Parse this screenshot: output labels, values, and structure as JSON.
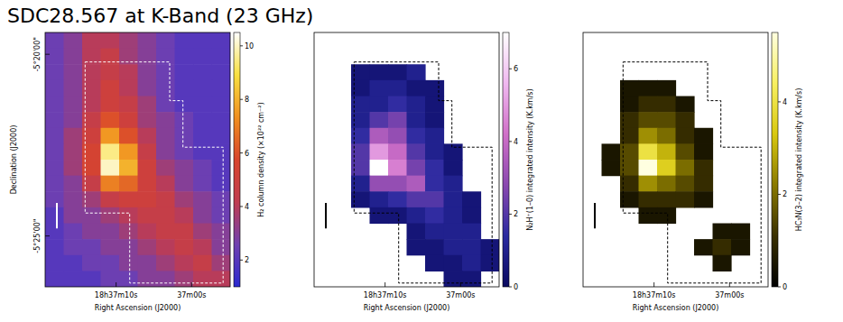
{
  "chart_data": [
    {
      "type": "heatmap",
      "title": "SDC28.567 at K-Band (23 GHz)",
      "x_label": "Right Ascension (J2000)",
      "y_label": "Declination (J2000)",
      "xlim": [
        19.4,
        -5.1
      ],
      "ylim": [
        -326.4,
        -319.4
      ],
      "xticks": [
        {
          "value": 10,
          "label": "18h37m10s"
        },
        {
          "value": 0,
          "label": "37m00s"
        }
      ],
      "yticks": [
        {
          "value": -320,
          "label": "-5°20'00\""
        },
        {
          "value": -325,
          "label": "-5°25'00\""
        }
      ],
      "x": [
        18.175,
        15.725,
        13.275,
        10.825,
        8.375,
        5.925,
        3.475,
        1.025,
        -1.425,
        -3.875
      ],
      "y": [
        -319.619,
        -320.056,
        -320.494,
        -320.931,
        -321.369,
        -321.806,
        -322.244,
        -322.681,
        -323.119,
        -323.556,
        -323.994,
        -324.431,
        -324.869,
        -325.306,
        -325.744,
        -326.181
      ],
      "cells": [
        [
          2.5,
          3,
          4,
          4,
          3.5,
          3,
          2.5,
          2,
          2,
          2
        ],
        [
          2.5,
          3,
          4,
          4.5,
          3.5,
          3,
          2.5,
          2,
          2,
          2
        ],
        [
          2.5,
          3,
          4,
          4.5,
          4,
          3,
          2.5,
          2,
          2,
          2
        ],
        [
          2.5,
          3,
          4,
          5,
          4,
          3,
          2.5,
          2,
          2,
          2
        ],
        [
          2.5,
          3,
          4,
          5,
          4.5,
          3.5,
          2.5,
          2,
          2,
          2
        ],
        [
          2.5,
          3,
          4.5,
          6,
          5,
          3.5,
          3,
          2.5,
          2,
          2
        ],
        [
          2.5,
          3.5,
          5,
          7.5,
          6,
          4,
          3,
          2.5,
          2,
          2
        ],
        [
          2.5,
          3.5,
          5.5,
          9.5,
          7.5,
          4.5,
          3,
          2.5,
          2,
          2
        ],
        [
          2.5,
          3.5,
          5.5,
          10,
          8,
          5,
          3.5,
          3,
          2.5,
          2
        ],
        [
          2.5,
          3,
          4.5,
          7,
          6.5,
          5,
          4,
          3,
          2.5,
          2
        ],
        [
          2.5,
          3,
          3.5,
          4.5,
          5,
          5,
          4.5,
          3.5,
          3,
          2.5
        ],
        [
          2,
          3,
          3,
          3.5,
          4,
          4.5,
          4.5,
          4,
          3,
          2.5
        ],
        [
          2,
          2.5,
          3,
          3,
          3.5,
          4,
          4.5,
          4.5,
          3.5,
          3
        ],
        [
          2,
          2.5,
          2.5,
          3,
          3,
          3.5,
          4,
          4.5,
          4,
          3
        ],
        [
          2,
          2,
          2.5,
          2.5,
          3,
          3,
          3.5,
          4,
          4.5,
          3.5
        ],
        [
          2,
          2,
          2,
          2.5,
          2.5,
          3,
          3,
          3.5,
          4,
          4
        ]
      ],
      "colors": [
        "#2a2ad0",
        "#7040b0",
        "#c03c50",
        "#d8442c",
        "#f09020",
        "#f8e040",
        "#ffffff"
      ],
      "colorbar": {
        "label": "H₂ column density (×10²² cm⁻²)",
        "range": [
          1,
          10.5
        ],
        "ticks": [
          2,
          4,
          6,
          8,
          10
        ]
      }
    },
    {
      "type": "heatmap",
      "x_label": "Right Ascension (J2000)",
      "tick_labels": "x",
      "xlim": [
        19.4,
        -5.1
      ],
      "ylim": [
        -326.4,
        -319.4
      ],
      "xticks": [
        {
          "value": 10,
          "label": "18h37m10s"
        },
        {
          "value": 0,
          "label": "37m00s"
        }
      ],
      "x": [
        18.175,
        15.725,
        13.275,
        10.825,
        8.375,
        5.925,
        3.475,
        1.025,
        -1.425,
        -3.875
      ],
      "y": [
        -319.619,
        -320.056,
        -320.494,
        -320.931,
        -321.369,
        -321.806,
        -322.244,
        -322.681,
        -323.119,
        -323.556,
        -323.994,
        -324.431,
        -324.869,
        -325.306,
        -325.744,
        -326.181
      ],
      "cells": [
        [
          null,
          null,
          null,
          null,
          null,
          null,
          null,
          null,
          null,
          null
        ],
        [
          null,
          null,
          null,
          null,
          null,
          null,
          null,
          null,
          null,
          null
        ],
        [
          null,
          null,
          0.5,
          0.5,
          0.5,
          1,
          null,
          null,
          null,
          null
        ],
        [
          null,
          null,
          0.5,
          1,
          1,
          0.5,
          0.5,
          null,
          null,
          null
        ],
        [
          null,
          null,
          1,
          1,
          1.5,
          1,
          0.5,
          null,
          null,
          null
        ],
        [
          null,
          null,
          1,
          2,
          2.5,
          1,
          0.5,
          null,
          null,
          null
        ],
        [
          null,
          null,
          1.5,
          3.5,
          3,
          1.5,
          1,
          null,
          null,
          null
        ],
        [
          null,
          null,
          2,
          5,
          4,
          2,
          1,
          0.5,
          null,
          null
        ],
        [
          null,
          null,
          2,
          7,
          4.5,
          2.5,
          1.5,
          0.5,
          null,
          null
        ],
        [
          null,
          null,
          1,
          3,
          3,
          3.5,
          1.5,
          1,
          null,
          null
        ],
        [
          null,
          null,
          0.5,
          1,
          1.5,
          2,
          2,
          1,
          0.5,
          null
        ],
        [
          null,
          null,
          null,
          0.5,
          0.5,
          1,
          1.5,
          1,
          0.5,
          null
        ],
        [
          null,
          null,
          null,
          null,
          null,
          0.5,
          1,
          1,
          1,
          null
        ],
        [
          null,
          null,
          null,
          null,
          null,
          0.5,
          0.5,
          1,
          1,
          0.5
        ],
        [
          null,
          null,
          null,
          null,
          null,
          null,
          0.5,
          0.5,
          1,
          0.5
        ],
        [
          null,
          null,
          null,
          null,
          null,
          null,
          null,
          0.5,
          0.5,
          null
        ]
      ],
      "colors": [
        "#0a0a60",
        "#2a2aa0",
        "#8a48b0",
        "#d070c8",
        "#f0b8f0",
        "#ffffff"
      ],
      "colorbar": {
        "label": "N₂H⁺(1–0) integrated intensity (K.km/s)",
        "range": [
          0,
          7
        ],
        "ticks": [
          0,
          2,
          4,
          6
        ]
      }
    },
    {
      "type": "heatmap",
      "x_label": "Right Ascension (J2000)",
      "tick_labels": "x",
      "xlim": [
        19.4,
        -5.1
      ],
      "ylim": [
        -326.4,
        -319.4
      ],
      "xticks": [
        {
          "value": 10,
          "label": "18h37m10s"
        },
        {
          "value": 0,
          "label": "37m00s"
        }
      ],
      "x": [
        18.175,
        15.725,
        13.275,
        10.825,
        8.375,
        5.925,
        3.475,
        1.025,
        -1.425,
        -3.875
      ],
      "y": [
        -319.619,
        -320.056,
        -320.494,
        -320.931,
        -321.369,
        -321.806,
        -322.244,
        -322.681,
        -323.119,
        -323.556,
        -323.994,
        -324.431,
        -324.869,
        -325.306,
        -325.744,
        -326.181
      ],
      "cells": [
        [
          null,
          null,
          null,
          null,
          null,
          null,
          null,
          null,
          null,
          null
        ],
        [
          null,
          null,
          null,
          null,
          null,
          null,
          null,
          null,
          null,
          null
        ],
        [
          null,
          null,
          null,
          null,
          null,
          null,
          null,
          null,
          null,
          null
        ],
        [
          null,
          null,
          0.5,
          0.5,
          0.5,
          null,
          null,
          null,
          null,
          null
        ],
        [
          null,
          null,
          0.5,
          1,
          1,
          0.5,
          null,
          null,
          null,
          null
        ],
        [
          null,
          null,
          1,
          1.5,
          1.5,
          1,
          null,
          null,
          null,
          null
        ],
        [
          null,
          null,
          1,
          2.5,
          2,
          1,
          0.5,
          null,
          null,
          null
        ],
        [
          null,
          0.5,
          1.5,
          4,
          3,
          1.5,
          0.5,
          null,
          null,
          null
        ],
        [
          null,
          0.5,
          1.5,
          5.5,
          3.5,
          2,
          1,
          null,
          null,
          null
        ],
        [
          null,
          null,
          1,
          2.5,
          2,
          1.5,
          1,
          null,
          null,
          null
        ],
        [
          null,
          null,
          0.5,
          1,
          1,
          1,
          0.5,
          null,
          null,
          null
        ],
        [
          null,
          null,
          null,
          0.5,
          0.5,
          null,
          null,
          null,
          null,
          null
        ],
        [
          null,
          null,
          null,
          null,
          null,
          null,
          null,
          0.5,
          0.5,
          null
        ],
        [
          null,
          null,
          null,
          null,
          null,
          null,
          0.5,
          1,
          0.5,
          null
        ],
        [
          null,
          null,
          null,
          null,
          null,
          null,
          null,
          0.5,
          null,
          null
        ],
        [
          null,
          null,
          null,
          null,
          null,
          null,
          null,
          null,
          null,
          null
        ]
      ],
      "colors": [
        "#000000",
        "#3a3000",
        "#8a7a00",
        "#d8c810",
        "#f8f060",
        "#ffffe0"
      ],
      "colorbar": {
        "label": "HC₃N(3–2) integrated intensity (K.km/s)",
        "range": [
          0,
          5.5
        ],
        "ticks": [
          0,
          2,
          4
        ]
      }
    }
  ]
}
